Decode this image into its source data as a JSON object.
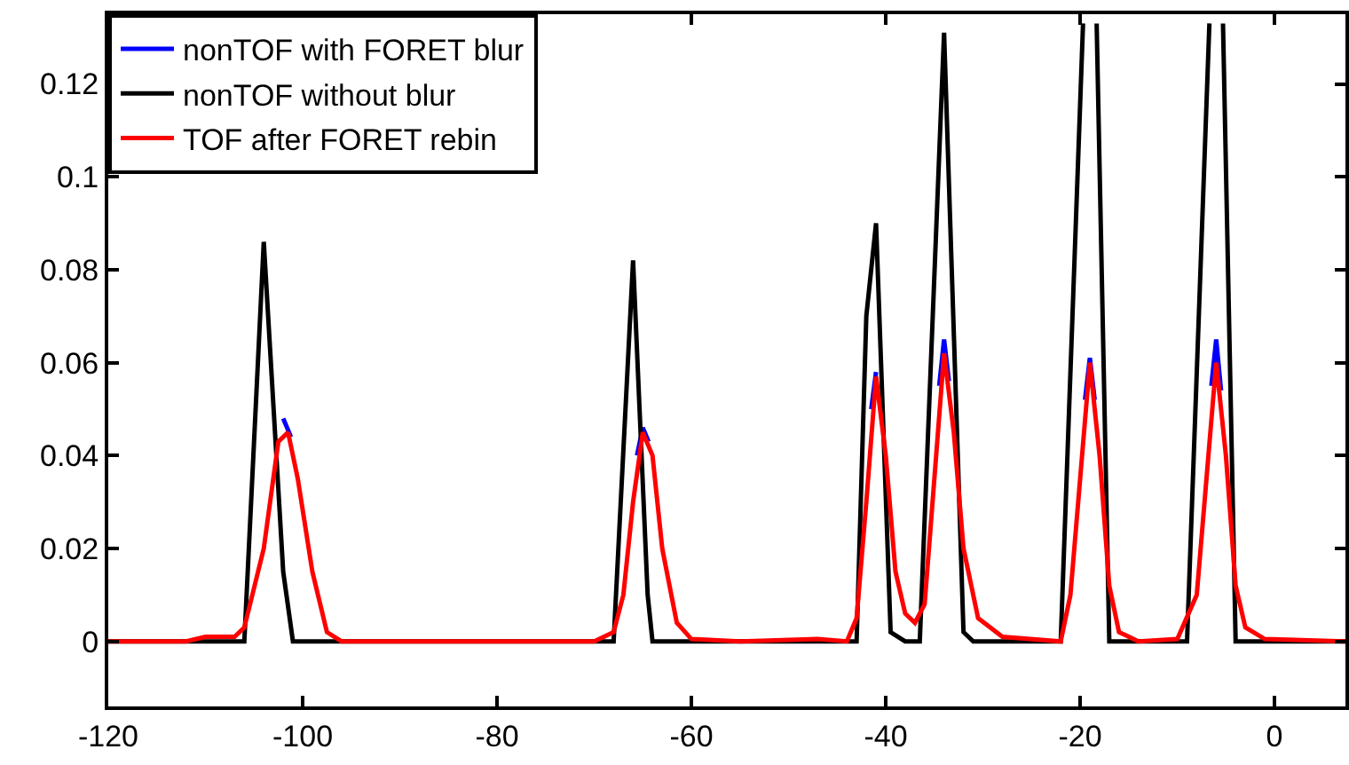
{
  "chart_data": {
    "type": "line",
    "xlim": [
      -120,
      7.3
    ],
    "xticks": [
      -120,
      -100,
      -80,
      -60,
      -40,
      -20,
      0
    ],
    "ylim": [
      -0.014,
      0.135
    ],
    "yticks": [
      0,
      0.02,
      0.04,
      0.06,
      0.08,
      0.1,
      0.12
    ],
    "grid": false,
    "legend": "top left",
    "marker": "none",
    "line_style": "solid",
    "series": [
      {
        "name": "nonTOF with FORET blur",
        "color": "#0000ff",
        "x": [
          -102,
          -101.2,
          -80,
          -65.6,
          -65,
          -64.4,
          -50,
          -41.5,
          -41,
          -40.5,
          -37,
          -34.5,
          -34,
          -33.5,
          -25,
          -19.5,
          -19,
          -18.5,
          -12,
          -6.5,
          -6,
          -5.5
        ],
        "values": [
          0.048,
          0.044,
          null,
          0.04,
          0.046,
          0.043,
          null,
          0.05,
          0.058,
          null,
          null,
          0.055,
          0.065,
          0.056,
          null,
          0.052,
          0.061,
          0.052,
          null,
          0.055,
          0.065,
          0.054
        ]
      },
      {
        "name": "nonTOF without blur",
        "color": "#000000",
        "x": [
          -120,
          -106,
          -104,
          -102,
          -101,
          -68,
          -66,
          -64.5,
          -64,
          -43,
          -42,
          -41,
          -39.5,
          -38,
          -36.5,
          -34,
          -32,
          -31,
          -22,
          -19.7,
          -19,
          -18.3,
          -17,
          -9,
          -6.7,
          -6,
          -5.3,
          -4,
          7.3
        ],
        "values": [
          0,
          0,
          0.086,
          0.015,
          0,
          0,
          0.082,
          0.01,
          0,
          0,
          0.07,
          0.09,
          0.002,
          0,
          0,
          0.131,
          0.002,
          0,
          0,
          0.133,
          null,
          0.133,
          0,
          0,
          0.133,
          null,
          0.133,
          0,
          0
        ]
      },
      {
        "name": "TOF after FORET rebin",
        "color": "#ff0000",
        "x": [
          -120,
          -112,
          -110,
          -107,
          -106,
          -104,
          -102.5,
          -101.5,
          -100.5,
          -99,
          -97.5,
          -96,
          -70,
          -68,
          -67,
          -66,
          -65,
          -64,
          -63,
          -61.5,
          -60,
          -55,
          -47,
          -44,
          -43,
          -42,
          -41,
          -40,
          -39,
          -38,
          -37,
          -36,
          -35,
          -34,
          -33,
          -32,
          -30.5,
          -28,
          -22,
          -21,
          -20,
          -19,
          -18,
          -17,
          -16,
          -14,
          -10,
          -8,
          -7,
          -6,
          -5,
          -4,
          -3,
          -1,
          7.3
        ],
        "values": [
          0,
          0,
          0.001,
          0.001,
          0.003,
          0.02,
          0.043,
          0.045,
          0.035,
          0.015,
          0.002,
          0,
          0,
          0.002,
          0.01,
          0.03,
          0.045,
          0.04,
          0.02,
          0.004,
          0.0005,
          0,
          0.0005,
          0,
          0.005,
          0.03,
          0.057,
          0.04,
          0.015,
          0.006,
          0.004,
          0.008,
          0.035,
          0.062,
          0.045,
          0.02,
          0.005,
          0.001,
          0,
          0.01,
          0.035,
          0.06,
          0.04,
          0.012,
          0.002,
          0,
          0.0005,
          0.01,
          0.035,
          0.06,
          0.04,
          0.012,
          0.003,
          0.0005,
          0
        ]
      }
    ]
  }
}
